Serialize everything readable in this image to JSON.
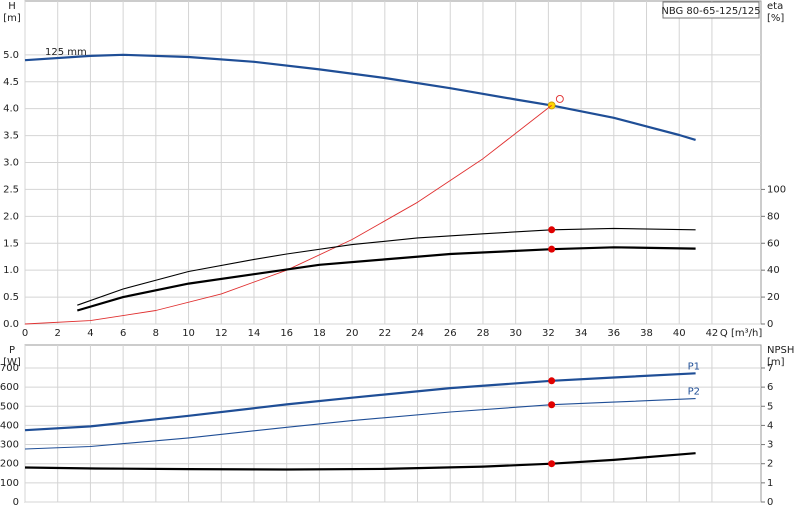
{
  "chart_data": [
    {
      "type": "line",
      "title": "NBG 80-65-125/125",
      "ylabel": "H",
      "yunit": "[m]",
      "y2label": "eta",
      "y2unit": "[%]",
      "xlabel": "Q [m³/h]",
      "xlim": [
        0,
        45
      ],
      "xticks": [
        0,
        2,
        4,
        6,
        8,
        10,
        12,
        14,
        16,
        18,
        20,
        22,
        24,
        26,
        28,
        30,
        32,
        34,
        36,
        38,
        40,
        42
      ],
      "xtick_labels": true,
      "ylim": [
        0,
        6
      ],
      "yticks": [
        {
          "value": 0,
          "label": "0.0"
        },
        {
          "value": 0.5,
          "label": "0.5"
        },
        {
          "value": 1,
          "label": "1.0"
        },
        {
          "value": 1.5,
          "label": "1.5"
        },
        {
          "value": 2,
          "label": "2.0"
        },
        {
          "value": 2.5,
          "label": "2.5"
        },
        {
          "value": 3,
          "label": "3.0"
        },
        {
          "value": 3.5,
          "label": "3.5"
        },
        {
          "value": 4,
          "label": "4.0"
        },
        {
          "value": 4.5,
          "label": "4.5"
        },
        {
          "value": 5,
          "label": "5.0"
        }
      ],
      "y2lim": [
        0,
        240
      ],
      "y2ticks": [
        0,
        20,
        40,
        60,
        80,
        100
      ],
      "grid": true,
      "series": [
        {
          "name": "125 mm",
          "label_at": "start",
          "color": "#1f4e96",
          "linewidth": 2.2,
          "x": [
            0,
            4,
            6,
            10,
            14,
            18,
            22,
            26,
            30,
            32.2,
            36,
            40,
            41
          ],
          "values": [
            4.9,
            4.98,
            5.0,
            4.96,
            4.87,
            4.73,
            4.57,
            4.38,
            4.17,
            4.06,
            3.83,
            3.51,
            3.42
          ],
          "point": {
            "x": 32.2,
            "value": 4.06,
            "color": "#ffd400"
          }
        },
        {
          "color": "#e03030",
          "linewidth": 0.9,
          "x": [
            0,
            4,
            8,
            12,
            16,
            20,
            24,
            28,
            32.2
          ],
          "values": [
            0,
            0.063,
            0.25,
            0.56,
            1.0,
            1.57,
            2.26,
            3.07,
            4.06
          ],
          "open_point": {
            "x": 32.7,
            "value": 4.18,
            "color": "#e03030"
          }
        },
        {
          "axis": "y2",
          "color": "#000000",
          "linewidth": 1.1,
          "x": [
            3.2,
            6,
            10,
            14,
            16,
            20,
            24,
            28,
            32.2,
            36,
            41
          ],
          "values": [
            14,
            26,
            39,
            48,
            52,
            59,
            64,
            67,
            70,
            71,
            70
          ],
          "point": {
            "x": 32.2,
            "value": 70,
            "color": "#e00000"
          }
        },
        {
          "axis": "y2",
          "color": "#000000",
          "linewidth": 2.2,
          "x": [
            3.2,
            6,
            10,
            14,
            18,
            22,
            26,
            32.2,
            36,
            41
          ],
          "values": [
            10,
            20,
            30,
            37,
            44,
            48,
            52,
            55.6,
            57,
            56
          ],
          "point": {
            "x": 32.2,
            "value": 55.6,
            "color": "#e00000"
          }
        }
      ]
    },
    {
      "type": "line",
      "ylabel": "P",
      "yunit": "[W]",
      "y2label": "NPSH",
      "y2unit": "[m]",
      "xlim": [
        0,
        45
      ],
      "xticks": [
        0,
        2,
        4,
        6,
        8,
        10,
        12,
        14,
        16,
        18,
        20,
        22,
        24,
        26,
        28,
        30,
        32,
        34,
        36,
        38,
        40,
        42
      ],
      "xtick_labels": false,
      "ylim": [
        0,
        820
      ],
      "yticks": [
        0,
        100,
        200,
        300,
        400,
        500,
        600,
        700
      ],
      "y2lim": [
        0,
        8.2
      ],
      "y2ticks": [
        0,
        1,
        2,
        3,
        4,
        5,
        6,
        7
      ],
      "grid": true,
      "series": [
        {
          "name": "P1",
          "label_at": "end",
          "color": "#1f4e96",
          "linewidth": 2.2,
          "x": [
            0,
            4,
            10,
            16,
            20,
            26,
            32.2,
            36,
            41
          ],
          "values": [
            375,
            395,
            450,
            510,
            545,
            595,
            633,
            650,
            672
          ],
          "point": {
            "x": 32.2,
            "value": 633,
            "color": "#e00000"
          }
        },
        {
          "name": "P2",
          "label_at": "end",
          "color": "#1f4e96",
          "linewidth": 1.1,
          "x": [
            0,
            4,
            10,
            16,
            20,
            26,
            32.2,
            36,
            41
          ],
          "values": [
            277,
            290,
            335,
            390,
            425,
            470,
            508,
            522,
            540
          ],
          "point": {
            "x": 32.2,
            "value": 508,
            "color": "#e00000"
          }
        },
        {
          "axis": "y2",
          "color": "#000000",
          "linewidth": 2.2,
          "x": [
            0,
            4.3,
            10,
            16,
            22,
            28,
            32.2,
            36,
            41
          ],
          "values": [
            1.8,
            1.75,
            1.72,
            1.7,
            1.73,
            1.85,
            2.0,
            2.2,
            2.55
          ],
          "point": {
            "x": 32.2,
            "value": 2.0,
            "color": "#e00000"
          }
        }
      ]
    }
  ]
}
